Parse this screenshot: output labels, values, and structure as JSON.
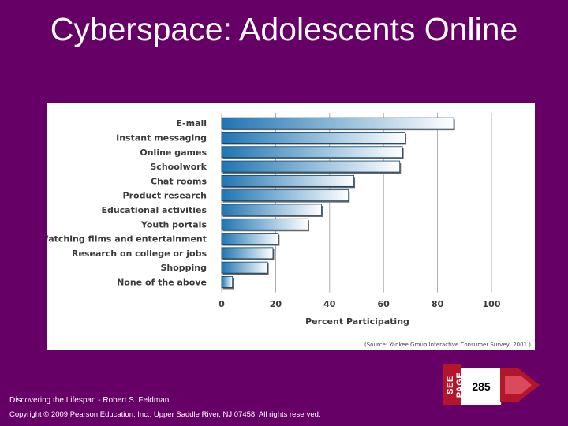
{
  "slide": {
    "title": "Cyberspace: Adolescents Online",
    "footer_credit": "Discovering the Lifespan - Robert S. Feldman",
    "footer_copyright": "Copyright © 2009 Pearson Education, Inc., Upper Saddle River, NJ 07458. All rights reserved.",
    "see_page_label": "SEE PAGE",
    "page_number": "285"
  },
  "colors": {
    "background": "#660066",
    "bar_dark": "#1f75b3",
    "bar_light": "#ffffff",
    "see_page_red": "#b3162a"
  },
  "chart_data": {
    "type": "bar",
    "orientation": "horizontal",
    "categories": [
      "E-mail",
      "Instant messaging",
      "Online games",
      "Schoolwork",
      "Chat rooms",
      "Product research",
      "Educational activities",
      "Youth portals",
      "Watching films and entertainment",
      "Research on college or jobs",
      "Shopping",
      "None of the above"
    ],
    "values": [
      86,
      68,
      67,
      66,
      49,
      47,
      37,
      32,
      21,
      19,
      17,
      4
    ],
    "xlabel": "Percent Participating",
    "ylabel": "",
    "xticks": [
      0,
      20,
      40,
      60,
      80,
      100
    ],
    "xlim": [
      0,
      100
    ],
    "grid": "vertical",
    "source": "(Source: Yankee Group Interactive Consumer Survey, 2001.)"
  }
}
